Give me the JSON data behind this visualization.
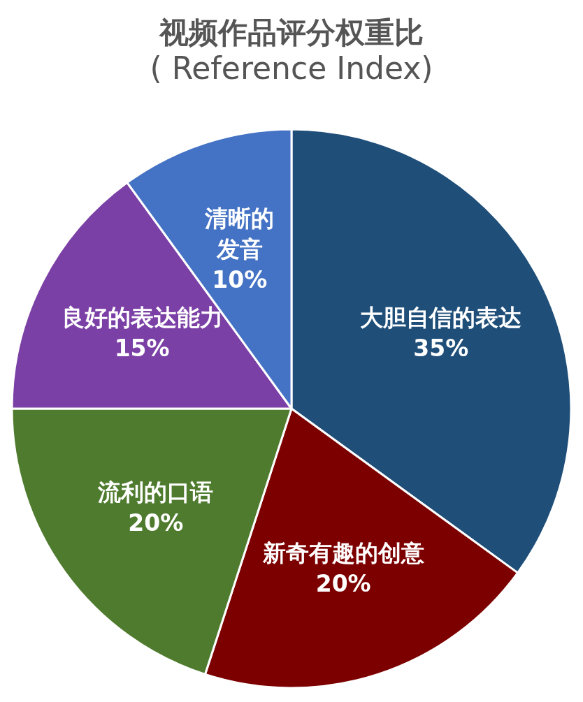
{
  "chart_data": {
    "type": "pie",
    "title": "视频作品评分权重比",
    "subtitle": "( Reference Index)",
    "categories": [
      "大胆自信的表达",
      "新奇有趣的创意",
      "流利的口语",
      "良好的表达能力",
      "清晰的发音"
    ],
    "values": [
      35,
      20,
      20,
      15,
      10
    ],
    "value_labels": [
      "35%",
      "20%",
      "20%",
      "15%",
      "10%"
    ],
    "colors": [
      "#1f4e79",
      "#7d0000",
      "#4f7b2e",
      "#7b40a5",
      "#4472c4"
    ],
    "legend": false
  }
}
